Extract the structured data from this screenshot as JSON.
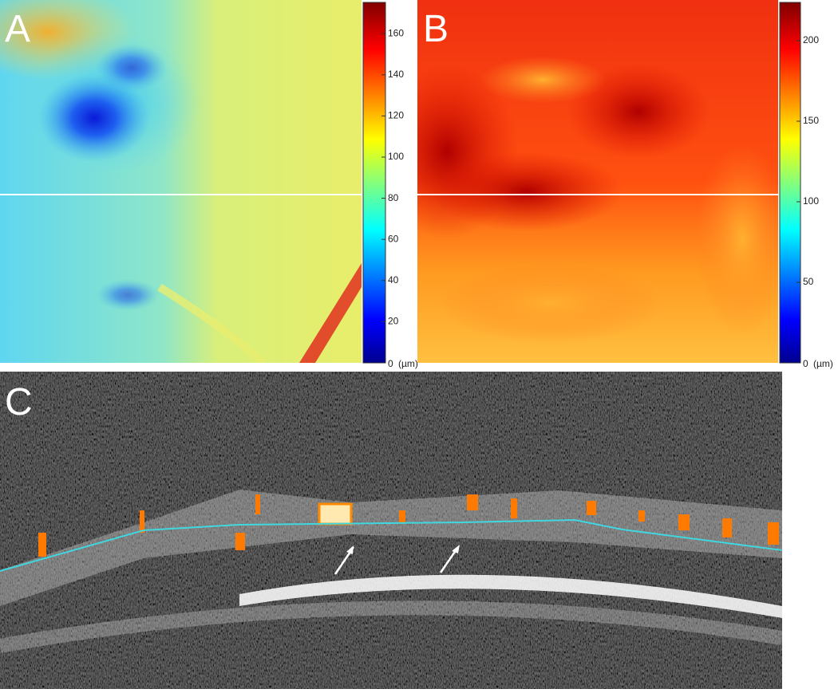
{
  "panels": [
    {
      "label": "A",
      "colorbar": {
        "ticks": [
          0,
          20,
          40,
          60,
          80,
          100,
          120,
          140,
          160
        ],
        "unit": "(µm)"
      }
    },
    {
      "label": "B",
      "colorbar": {
        "ticks": [
          0,
          50,
          100,
          150,
          200
        ],
        "unit": "(µm)"
      }
    },
    {
      "label": "C"
    }
  ]
}
